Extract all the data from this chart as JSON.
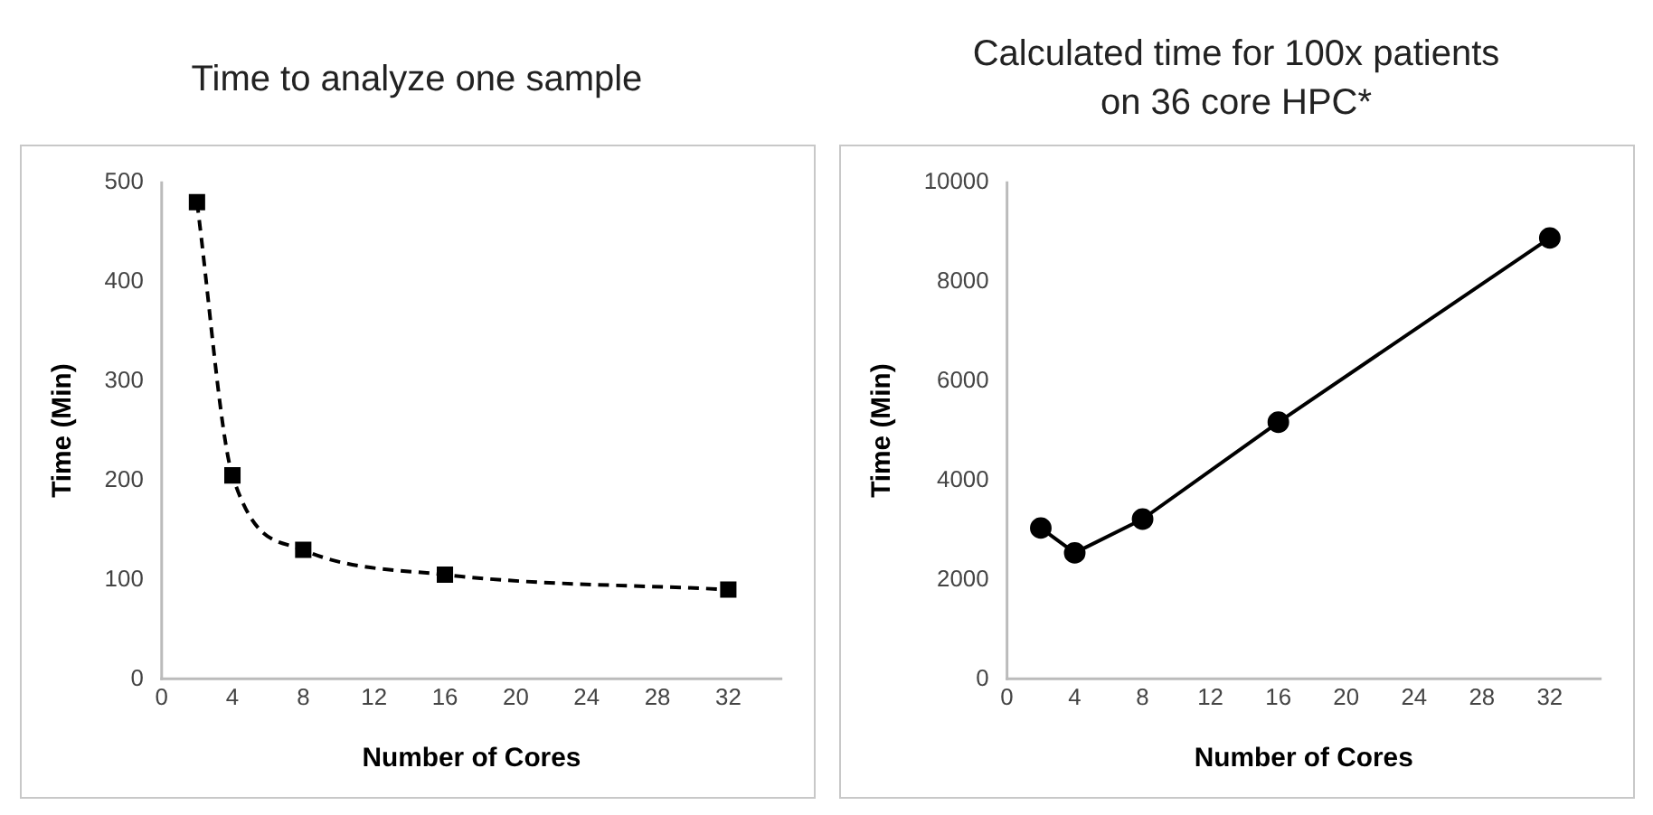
{
  "chart_data": [
    {
      "type": "line",
      "title": "Time to analyze one sample",
      "xlabel": "Number of Cores",
      "ylabel": "Time (Min)",
      "x": [
        2,
        4,
        8,
        16,
        32
      ],
      "series": [
        {
          "color": "#000000",
          "values": [
            480,
            205,
            130,
            105,
            90
          ]
        }
      ],
      "xlim": [
        0,
        35
      ],
      "xticks": [
        0,
        4,
        8,
        12,
        16,
        20,
        24,
        28,
        32
      ],
      "ylim": [
        0,
        500
      ],
      "yticks": [
        0,
        100,
        200,
        300,
        400,
        500
      ],
      "grid": false,
      "legend": false,
      "marker": "square",
      "line_style": "dashed"
    },
    {
      "type": "line",
      "title": "Calculated time for 100x patients on 36 core HPC*",
      "xlabel": "Number of Cores",
      "ylabel": "Time (Min)",
      "x": [
        2,
        4,
        8,
        16,
        32
      ],
      "series": [
        {
          "color": "#000000",
          "values": [
            3040,
            2540,
            3220,
            5170,
            8880
          ]
        }
      ],
      "xlim": [
        0,
        35
      ],
      "xticks": [
        0,
        4,
        8,
        12,
        16,
        20,
        24,
        28,
        32
      ],
      "ylim": [
        0,
        10000
      ],
      "yticks": [
        0,
        2000,
        4000,
        6000,
        8000,
        10000
      ],
      "grid": false,
      "legend": false,
      "marker": "circle",
      "line_style": "solid"
    }
  ]
}
